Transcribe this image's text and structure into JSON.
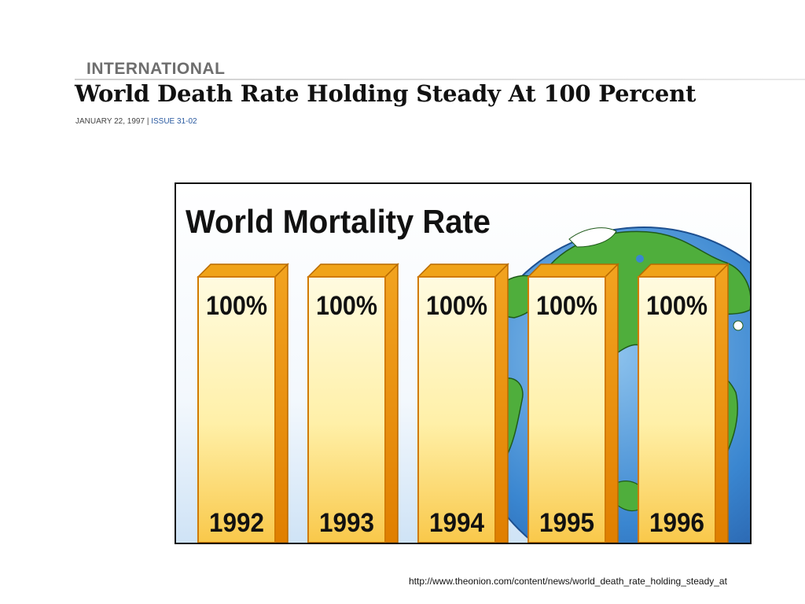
{
  "article": {
    "section": "INTERNATIONAL",
    "headline": "World Death Rate Holding Steady At 100 Percent",
    "date": "JANUARY 22, 1997",
    "separator": "|",
    "issue": "ISSUE 31-02"
  },
  "source_url": "http://www.theonion.com/content/news/world_death_rate_holding_steady_at",
  "colors": {
    "bar_front_light": "#fff6c8",
    "bar_front_dark": "#f9c84a",
    "bar_side": "#e08a00",
    "bar_top": "#f0a318",
    "ocean": "#3a86d0",
    "land": "#4fae3c"
  },
  "chart_data": {
    "type": "bar",
    "title": "World Mortality Rate",
    "categories": [
      "1992",
      "1993",
      "1994",
      "1995",
      "1996"
    ],
    "values": [
      100,
      100,
      100,
      100,
      100
    ],
    "value_labels": [
      "100%",
      "100%",
      "100%",
      "100%",
      "100%"
    ],
    "unit": "%",
    "ylim": [
      0,
      100
    ],
    "grid": false,
    "legend": "none",
    "background_icon": "globe-icon"
  }
}
